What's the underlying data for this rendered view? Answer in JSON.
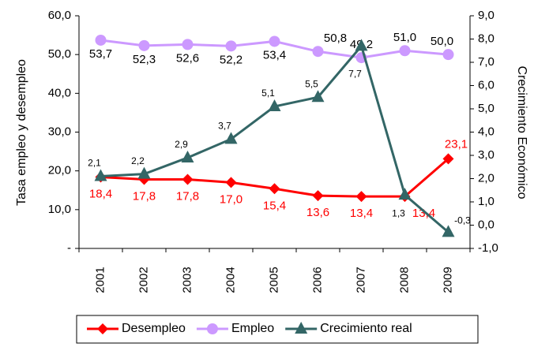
{
  "chart_data": {
    "type": "line",
    "ylabel": "Tasa empleo y desempleo",
    "y2label": "Crecimiento Económico",
    "categories": [
      "2001",
      "2002",
      "2003",
      "2004",
      "2005",
      "2006",
      "2007",
      "2008",
      "2009"
    ],
    "series": [
      {
        "name": "Desempleo",
        "color": "#ff0000",
        "marker": "diamond",
        "values": [
          18.4,
          17.8,
          17.8,
          17.0,
          15.4,
          13.6,
          13.4,
          13.4,
          23.1
        ],
        "value_labels": [
          "18,4",
          "17,8",
          "17,8",
          "17,0",
          "15,4",
          "13,6",
          "13,4",
          "13,4",
          "23,1"
        ]
      },
      {
        "name": "Empleo",
        "color": "#cc99ff",
        "marker": "circle",
        "values": [
          53.7,
          52.3,
          52.6,
          52.2,
          53.4,
          50.8,
          49.2,
          51.0,
          50.0
        ],
        "value_labels": [
          "53,7",
          "52,3",
          "52,6",
          "52,2",
          "53,4",
          "50,8",
          "49,2",
          "51,0",
          "50,0"
        ]
      },
      {
        "name": "Crecimiento real",
        "color": "#336666",
        "marker": "triangle",
        "axis": "y2",
        "values": [
          2.1,
          2.2,
          2.9,
          3.7,
          5.1,
          5.5,
          7.7,
          1.3,
          -0.3
        ],
        "value_labels": [
          "2,1",
          "2,2",
          "2,9",
          "3,7",
          "5,1",
          "5,5",
          "7,7",
          "1,3",
          "-0,3"
        ]
      }
    ],
    "ylim": [
      0,
      60
    ],
    "yticks": [
      {
        "value": 0,
        "label": "-"
      },
      {
        "value": 10,
        "label": "10,0"
      },
      {
        "value": 20,
        "label": "20,0"
      },
      {
        "value": 30,
        "label": "30,0"
      },
      {
        "value": 40,
        "label": "40,0"
      },
      {
        "value": 50,
        "label": "50,0"
      },
      {
        "value": 60,
        "label": "60,0"
      }
    ],
    "y2lim": [
      -1,
      9
    ],
    "y2ticks": [
      {
        "value": -1,
        "label": "-1,0"
      },
      {
        "value": 0,
        "label": "0,0"
      },
      {
        "value": 1,
        "label": "1,0"
      },
      {
        "value": 2,
        "label": "2,0"
      },
      {
        "value": 3,
        "label": "3,0"
      },
      {
        "value": 4,
        "label": "4,0"
      },
      {
        "value": 5,
        "label": "5,0"
      },
      {
        "value": 6,
        "label": "6,0"
      },
      {
        "value": 7,
        "label": "7,0"
      },
      {
        "value": 8,
        "label": "8,0"
      },
      {
        "value": 9,
        "label": "9,0"
      }
    ],
    "legend": "bottom"
  }
}
